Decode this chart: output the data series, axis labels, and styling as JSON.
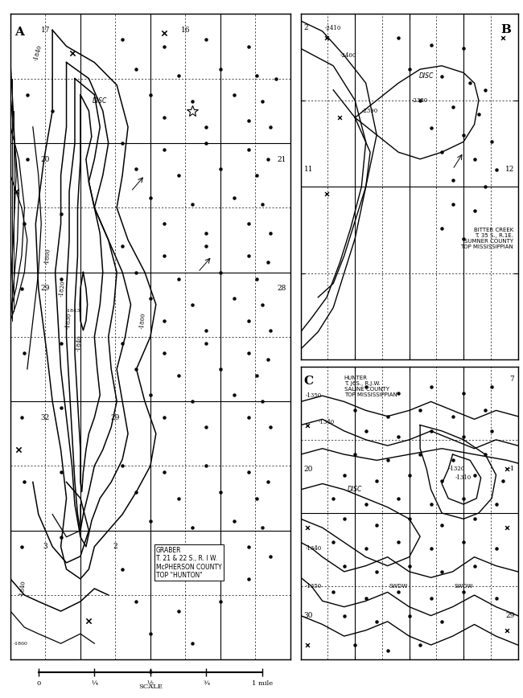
{
  "fig_width": 6.5,
  "fig_height": 8.68,
  "bg_color": "#ffffff",
  "panel_A": {
    "label": "A",
    "info": "GRABER\nT. 21 & 22 S., R. I W.\nMcPHERSON COUNTY\nTOP \"HUNTON\""
  },
  "panel_B": {
    "label": "B",
    "info": "BITTER CREEK\nT. 35 S., R.1E.\nSUMNER COUNTY\nTOP MISSISSIPPIAN"
  },
  "panel_C": {
    "label": "C",
    "info": "HUNTER\nT. J6S., R.J.W.\nSALINE COUNTY\nTOP MISSISSIPPIAN"
  }
}
